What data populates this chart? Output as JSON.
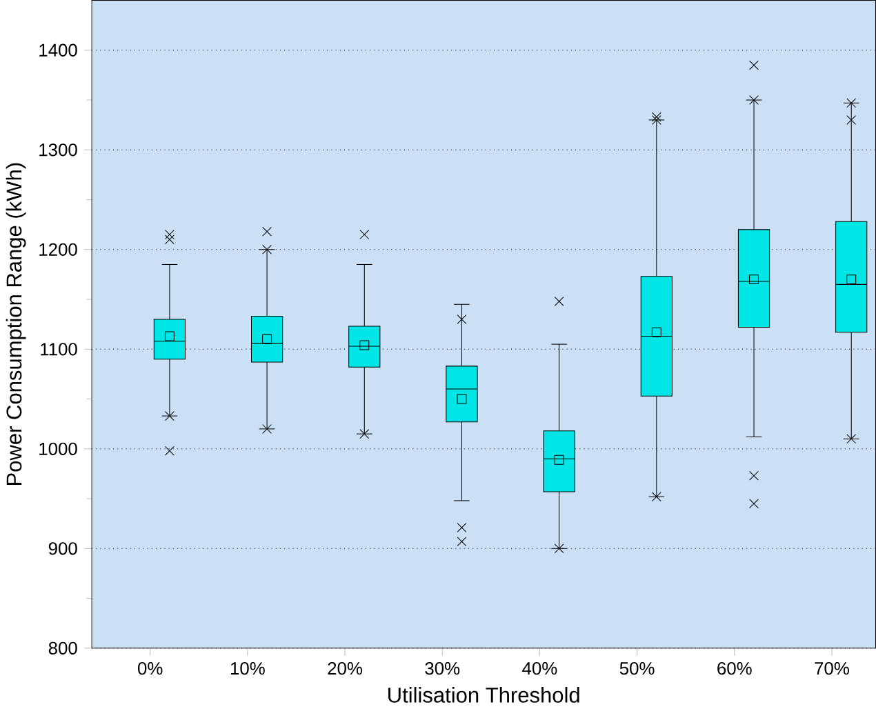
{
  "chart_data": {
    "type": "box",
    "xlabel": "Utilisation Threshold",
    "ylabel": "Power Consumption Range (kWh)",
    "categories": [
      "0%",
      "10%",
      "20%",
      "30%",
      "40%",
      "50%",
      "60%",
      "70%"
    ],
    "color": "#00e5e5",
    "grid": "y",
    "ylim": [
      800,
      1450
    ],
    "yticks": [
      800,
      900,
      1000,
      1100,
      1200,
      1300,
      1400
    ],
    "boxes": [
      {
        "low": 1033,
        "q1": 1090,
        "median": 1108,
        "q3": 1130,
        "high": 1185,
        "mean": 1113,
        "outliers": [
          998,
          1033,
          1210,
          1215
        ]
      },
      {
        "low": 1020,
        "q1": 1087,
        "median": 1106,
        "q3": 1133,
        "high": 1200,
        "mean": 1110,
        "outliers": [
          1020,
          1200,
          1218
        ]
      },
      {
        "low": 1015,
        "q1": 1082,
        "median": 1103,
        "q3": 1123,
        "high": 1185,
        "mean": 1104,
        "outliers": [
          1015,
          1215
        ]
      },
      {
        "low": 948,
        "q1": 1027,
        "median": 1060,
        "q3": 1083,
        "high": 1145,
        "mean": 1050,
        "outliers": [
          907,
          921,
          1130
        ]
      },
      {
        "low": 900,
        "q1": 957,
        "median": 990,
        "q3": 1018,
        "high": 1105,
        "mean": 989,
        "outliers": [
          900,
          1148
        ]
      },
      {
        "low": 952,
        "q1": 1053,
        "median": 1113,
        "q3": 1173,
        "high": 1330,
        "mean": 1117,
        "outliers": [
          952,
          1330,
          1333
        ]
      },
      {
        "low": 1012,
        "q1": 1122,
        "median": 1168,
        "q3": 1220,
        "high": 1350,
        "mean": 1170,
        "outliers": [
          945,
          973,
          1350,
          1385
        ]
      },
      {
        "low": 1010,
        "q1": 1117,
        "median": 1165,
        "q3": 1228,
        "high": 1347,
        "mean": 1170,
        "outliers": [
          1010,
          1330,
          1347
        ]
      }
    ]
  }
}
